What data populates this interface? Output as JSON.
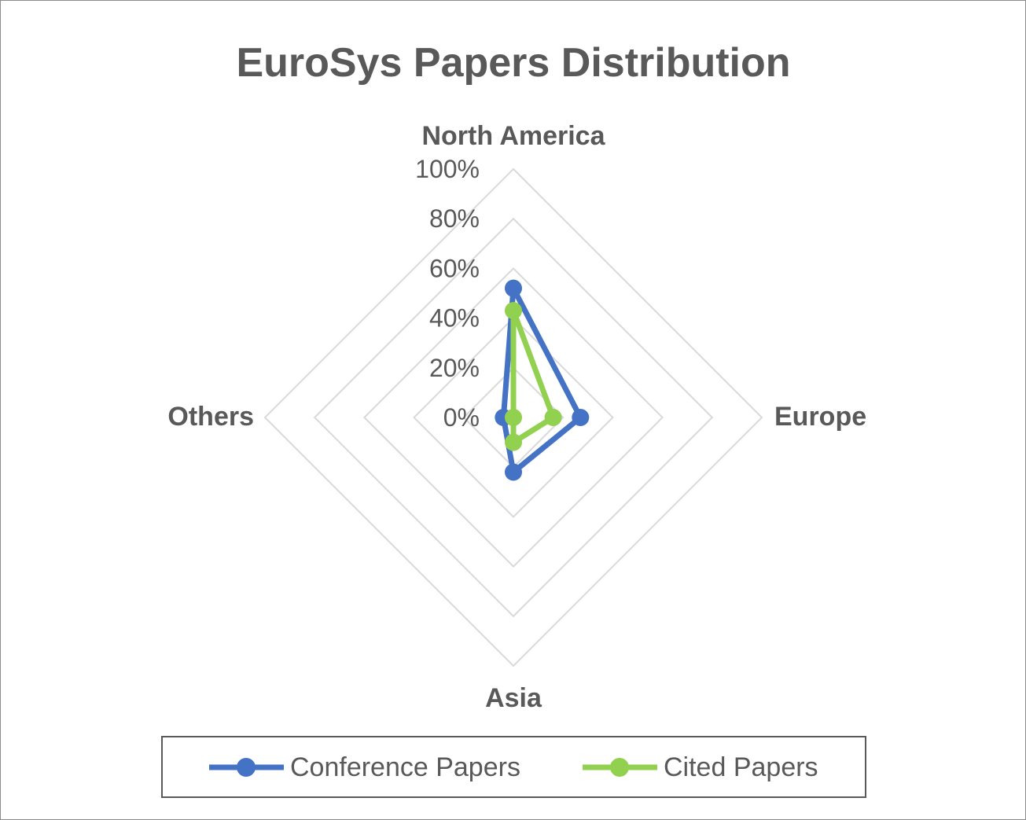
{
  "chart_data": {
    "type": "radar",
    "title": "EuroSys Papers Distribution",
    "categories": [
      "North America",
      "Europe",
      "Asia",
      "Others"
    ],
    "rmax": 1.0,
    "ticks": [
      0,
      0.2,
      0.4,
      0.6,
      0.8,
      1.0
    ],
    "tick_labels": [
      "0%",
      "20%",
      "40%",
      "60%",
      "80%",
      "100%"
    ],
    "grid": true,
    "legend_position": "bottom",
    "series": [
      {
        "name": "Conference Papers",
        "color": "#4472C4",
        "values": [
          0.52,
          0.27,
          0.22,
          0.04
        ]
      },
      {
        "name": "Cited Papers",
        "color": "#92D050",
        "values": [
          0.43,
          0.16,
          0.1,
          0.0
        ]
      }
    ]
  }
}
